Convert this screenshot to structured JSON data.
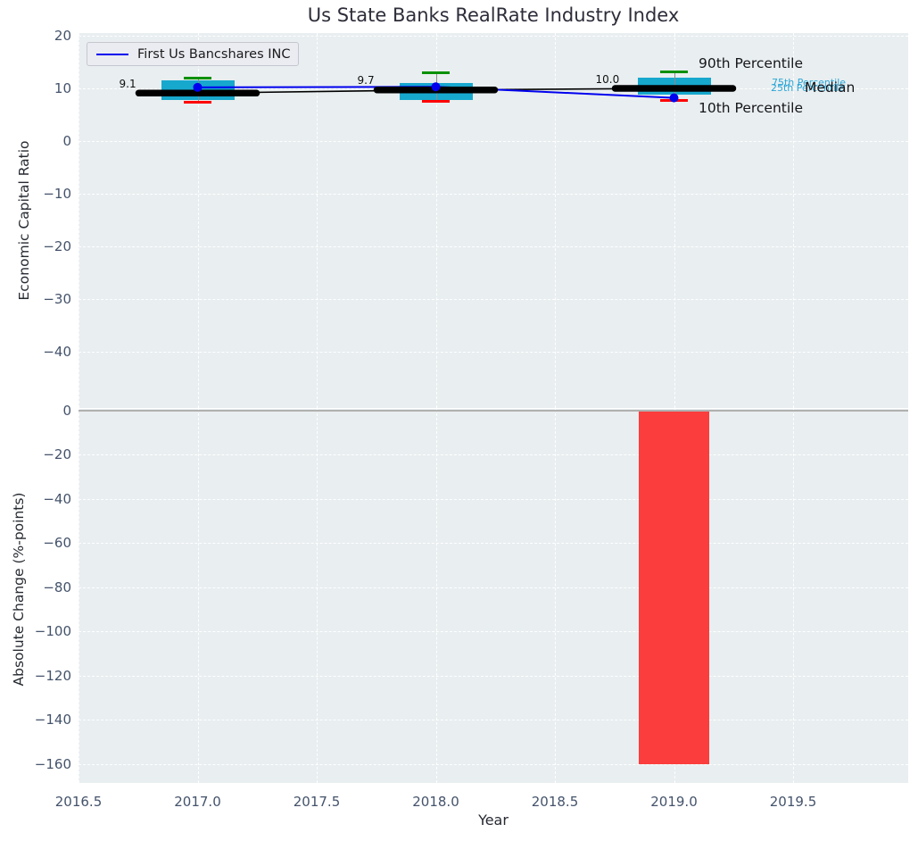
{
  "title": "Us State Banks RealRate Industry Index",
  "legend": {
    "series_label": "First Us Bancshares INC"
  },
  "top_chart": {
    "ylabel": "Economic Capital Ratio",
    "ytick_labels": [
      "20",
      "10",
      "0",
      "−10",
      "−20",
      "−30",
      "−40"
    ],
    "annotations": {
      "p90": "90th Percentile",
      "p75": "75th Percentile",
      "p25": "25th Percentile",
      "median": "Median",
      "p10": "10th Percentile"
    }
  },
  "bottom_chart": {
    "ylabel": "Absolute Change (%-points)",
    "ytick_labels": [
      "0",
      "−20",
      "−40",
      "−60",
      "−80",
      "−100",
      "−120",
      "−140",
      "−160"
    ]
  },
  "xaxis": {
    "label": "Year",
    "tick_labels": [
      "2016.5",
      "2017.0",
      "2017.5",
      "2018.0",
      "2018.5",
      "2019.0",
      "2019.5"
    ]
  },
  "colors": {
    "company_line": "#0000ee",
    "median_line": "#000000",
    "box_fill": "#17a8ce",
    "p90_cap": "#089000",
    "p10_cap": "#ff0000",
    "bar_fill": "#fb3d3d",
    "percentile_text": "#2ba7d6",
    "baseline": "#b0b0b0",
    "plot_background": "#e9eef0"
  },
  "chart_data": [
    {
      "type": "box-line",
      "title": "Us State Banks RealRate Industry Index",
      "xlabel": "Year",
      "ylabel": "Economic Capital Ratio",
      "x": [
        2017,
        2018,
        2019
      ],
      "xlim": [
        2016.5,
        2019.98
      ],
      "ylim": [
        -51,
        20
      ],
      "grid": "white dashed, on",
      "legend_position": "upper left",
      "xtick_values": [
        2016.5,
        2017.0,
        2017.5,
        2018.0,
        2018.5,
        2019.0,
        2019.5
      ],
      "ytick_values": [
        20,
        10,
        0,
        -10,
        -20,
        -30,
        -40
      ],
      "boxes": [
        {
          "x": 2017,
          "p90": 12.0,
          "p75": 11.5,
          "median": 9.1,
          "p25": 7.8,
          "p10": 7.3,
          "median_label": "9.1"
        },
        {
          "x": 2018,
          "p90": 13.0,
          "p75": 11.0,
          "median": 9.7,
          "p25": 7.8,
          "p10": 7.5,
          "median_label": "9.7"
        },
        {
          "x": 2019,
          "p90": 13.1,
          "p75": 12.0,
          "median": 10.0,
          "p25": 8.8,
          "p10": 7.7,
          "median_label": "10.0"
        }
      ],
      "series": [
        {
          "name": "First Us Bancshares INC",
          "type": "line+dot",
          "values": [
            10.2,
            10.3,
            8.2
          ]
        },
        {
          "name": "Median",
          "type": "line+thick dash marker",
          "values": [
            9.1,
            9.7,
            10.0
          ]
        }
      ]
    },
    {
      "type": "bar",
      "xlabel": "Year",
      "ylabel": "Absolute Change (%-points)",
      "categories": [
        2019
      ],
      "values": [
        -160
      ],
      "bar_width_years": 0.3,
      "xlim": [
        2016.5,
        2019.98
      ],
      "ylim": [
        -168,
        1
      ],
      "baseline": 0,
      "grid": "white dashed, on",
      "xtick_values": [
        2016.5,
        2017.0,
        2017.5,
        2018.0,
        2018.5,
        2019.0,
        2019.5
      ],
      "ytick_values": [
        0,
        -20,
        -40,
        -60,
        -80,
        -100,
        -120,
        -140,
        -160
      ]
    }
  ]
}
